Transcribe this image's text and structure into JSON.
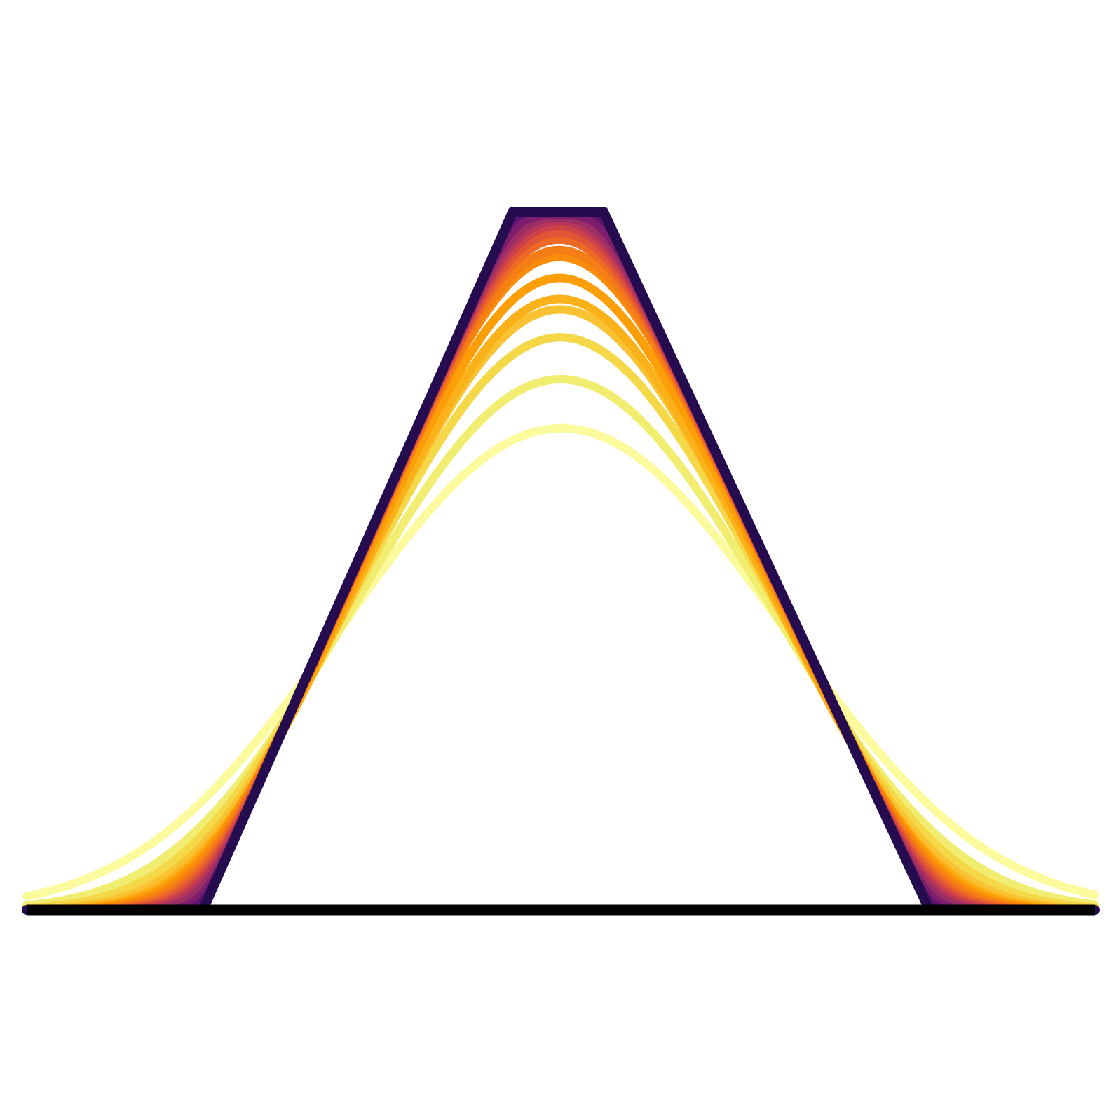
{
  "chart_data": {
    "type": "line",
    "title": "",
    "xlabel": "",
    "ylabel": "",
    "xlim": [
      -1,
      1
    ],
    "ylim": [
      0,
      1
    ],
    "grid": false,
    "legend": "none",
    "colormap": "inferno",
    "baseline": {
      "y": 0,
      "color": "#000000"
    },
    "series": [
      {
        "sigma": 0.26,
        "peak": 0.69,
        "color": "#fbfa9c"
      },
      {
        "sigma": 0.2,
        "peak": 0.76,
        "color": "#f1ed70"
      },
      {
        "sigma": 0.17,
        "peak": 0.82,
        "color": "#f5d848"
      },
      {
        "sigma": 0.145,
        "peak": 0.86,
        "color": "#f8c232"
      },
      {
        "sigma": 0.13,
        "peak": 0.875,
        "color": "#fbb21a"
      },
      {
        "sigma": 0.12,
        "peak": 0.905,
        "color": "#fb9e07"
      },
      {
        "sigma": 0.11,
        "peak": 0.935,
        "color": "#f98c0a"
      },
      {
        "sigma": 0.1,
        "peak": 0.945,
        "color": "#f57d15"
      },
      {
        "sigma": 0.09,
        "peak": 0.96,
        "color": "#ed6925"
      },
      {
        "sigma": 0.08,
        "peak": 0.97,
        "color": "#e05536"
      },
      {
        "sigma": 0.07,
        "peak": 0.98,
        "color": "#cc4248"
      },
      {
        "sigma": 0.06,
        "peak": 0.987,
        "color": "#b5365a"
      },
      {
        "sigma": 0.05,
        "peak": 0.992,
        "color": "#9c2e66"
      },
      {
        "sigma": 0.035,
        "peak": 0.996,
        "color": "#7c1d6d"
      },
      {
        "sigma": 0.02,
        "peak": 1.0,
        "color": "#5c126e"
      },
      {
        "sigma": 0.0,
        "peak": 1.0,
        "color": "#240c4f"
      }
    ],
    "final_shape": {
      "type": "trapezoid",
      "x": [
        -1.0,
        -0.67,
        -0.09,
        0.08,
        0.69,
        1.0
      ],
      "y": [
        0,
        0,
        1,
        1,
        0,
        0
      ]
    }
  }
}
